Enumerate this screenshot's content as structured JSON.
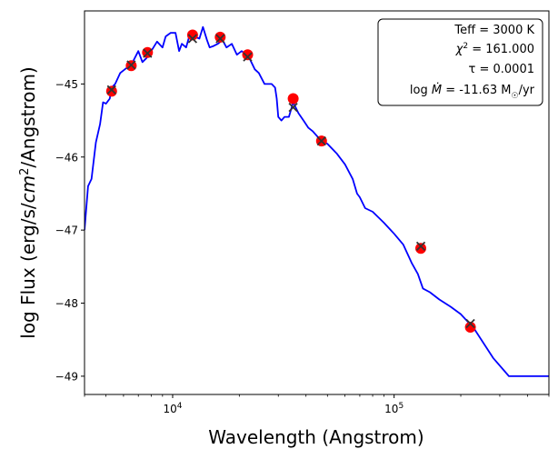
{
  "chart_data": {
    "type": "line",
    "title": "",
    "xlabel": "Wavelength (Angstrom)",
    "ylabel": "log Flux (erg/s/cm2/Angstrom)",
    "xscale": "log",
    "xlim": [
      4000,
      500000
    ],
    "ylim": [
      -49.25,
      -44.0
    ],
    "grid": false,
    "legend": "none",
    "x_ticks": [
      {
        "value": 10000,
        "base": "10",
        "exp": "4"
      },
      {
        "value": 100000,
        "base": "10",
        "exp": "5"
      }
    ],
    "y_ticks": [
      {
        "value": -45,
        "label": "−45"
      },
      {
        "value": -46,
        "label": "−46"
      },
      {
        "value": -47,
        "label": "−47"
      },
      {
        "value": -48,
        "label": "−48"
      },
      {
        "value": -49,
        "label": "−49"
      }
    ],
    "info_box": {
      "position": "top-right",
      "teff": "Teff = 3000 K",
      "chi2_label": "χ",
      "chi2_sup": "2",
      "chi2_value": " = 161.000",
      "tau": "τ = 0.0001",
      "mdot_prefix": "log ",
      "mdot_symbol": "Ṁ",
      "mdot_value": " = -11.63 M",
      "mdot_sun": "☉",
      "mdot_unit": "/yr"
    },
    "series": [
      {
        "style": "line",
        "color": "#0000ff",
        "points": [
          [
            4000,
            -47.0
          ],
          [
            4150,
            -46.4
          ],
          [
            4300,
            -46.3
          ],
          [
            4500,
            -45.8
          ],
          [
            4700,
            -45.55
          ],
          [
            4850,
            -45.25
          ],
          [
            5000,
            -45.27
          ],
          [
            5200,
            -45.2
          ],
          [
            5300,
            -45.05
          ],
          [
            5500,
            -45.0
          ],
          [
            5800,
            -44.85
          ],
          [
            6200,
            -44.78
          ],
          [
            6600,
            -44.7
          ],
          [
            7000,
            -44.55
          ],
          [
            7300,
            -44.7
          ],
          [
            7600,
            -44.65
          ],
          [
            8000,
            -44.55
          ],
          [
            8500,
            -44.42
          ],
          [
            9000,
            -44.5
          ],
          [
            9300,
            -44.35
          ],
          [
            9800,
            -44.3
          ],
          [
            10300,
            -44.3
          ],
          [
            10700,
            -44.55
          ],
          [
            11000,
            -44.45
          ],
          [
            11500,
            -44.5
          ],
          [
            12000,
            -44.3
          ],
          [
            12500,
            -44.35
          ],
          [
            13200,
            -44.38
          ],
          [
            13700,
            -44.22
          ],
          [
            14300,
            -44.4
          ],
          [
            14700,
            -44.5
          ],
          [
            15300,
            -44.48
          ],
          [
            16000,
            -44.45
          ],
          [
            16800,
            -44.4
          ],
          [
            17500,
            -44.5
          ],
          [
            18500,
            -44.45
          ],
          [
            19500,
            -44.6
          ],
          [
            20500,
            -44.55
          ],
          [
            22000,
            -44.62
          ],
          [
            23500,
            -44.8
          ],
          [
            24500,
            -44.85
          ],
          [
            26000,
            -45.0
          ],
          [
            28000,
            -45.0
          ],
          [
            29000,
            -45.05
          ],
          [
            29500,
            -45.2
          ],
          [
            30000,
            -45.45
          ],
          [
            31000,
            -45.5
          ],
          [
            32000,
            -45.45
          ],
          [
            33500,
            -45.45
          ],
          [
            35000,
            -45.25
          ],
          [
            37000,
            -45.4
          ],
          [
            39000,
            -45.5
          ],
          [
            41000,
            -45.6
          ],
          [
            43000,
            -45.65
          ],
          [
            46000,
            -45.75
          ],
          [
            50000,
            -45.82
          ],
          [
            55000,
            -45.95
          ],
          [
            60000,
            -46.1
          ],
          [
            65000,
            -46.3
          ],
          [
            68000,
            -46.5
          ],
          [
            70000,
            -46.55
          ],
          [
            74000,
            -46.7
          ],
          [
            80000,
            -46.75
          ],
          [
            90000,
            -46.9
          ],
          [
            100000,
            -47.05
          ],
          [
            110000,
            -47.2
          ],
          [
            120000,
            -47.45
          ],
          [
            128000,
            -47.6
          ],
          [
            135000,
            -47.8
          ],
          [
            145000,
            -47.85
          ],
          [
            160000,
            -47.95
          ],
          [
            180000,
            -48.05
          ],
          [
            200000,
            -48.15
          ],
          [
            230000,
            -48.35
          ],
          [
            280000,
            -48.75
          ],
          [
            330000,
            -49.0
          ],
          [
            400000,
            -49.0
          ],
          [
            500000,
            -49.0
          ]
        ]
      },
      {
        "style": "circle",
        "color": "#ff0000",
        "points": [
          [
            5300,
            -45.1
          ],
          [
            6500,
            -44.75
          ],
          [
            7700,
            -44.57
          ],
          [
            12300,
            -44.33
          ],
          [
            16400,
            -44.36
          ],
          [
            21800,
            -44.6
          ],
          [
            35000,
            -45.2
          ],
          [
            47000,
            -45.78
          ],
          [
            132000,
            -47.25
          ],
          [
            221000,
            -48.33
          ]
        ]
      },
      {
        "style": "x",
        "color": "#333333",
        "points": [
          [
            5300,
            -45.08
          ],
          [
            6500,
            -44.74
          ],
          [
            7700,
            -44.58
          ],
          [
            12300,
            -44.38
          ],
          [
            16400,
            -44.38
          ],
          [
            21800,
            -44.63
          ],
          [
            35000,
            -45.32
          ],
          [
            47000,
            -45.78
          ],
          [
            132000,
            -47.22
          ],
          [
            221000,
            -48.28
          ]
        ]
      }
    ]
  }
}
